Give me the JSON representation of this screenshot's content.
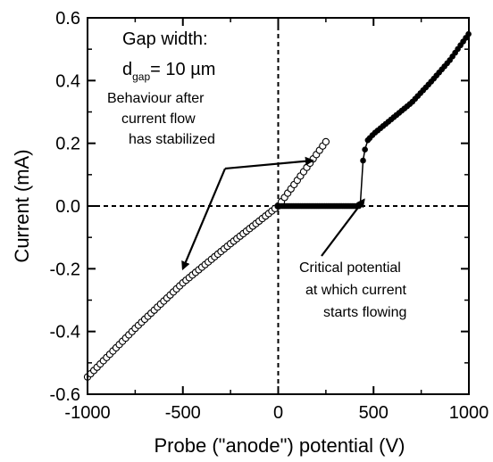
{
  "chart_data": {
    "type": "scatter",
    "xlabel": "Probe (\"anode\") potential (V)",
    "ylabel": "Current (mA)",
    "xlim": [
      -1000,
      1000
    ],
    "ylim": [
      -0.6,
      0.6
    ],
    "xticks": [
      -1000,
      -500,
      0,
      500,
      1000
    ],
    "xtick_labels": [
      "-1000",
      "-500",
      "0",
      "500",
      "1000"
    ],
    "yticks": [
      -0.6,
      -0.4,
      -0.2,
      0.0,
      0.2,
      0.4,
      0.6
    ],
    "ytick_labels": [
      "-0.6",
      "-0.4",
      "-0.2",
      "0.0",
      "0.2",
      "0.4",
      "0.6"
    ],
    "grid": false,
    "reference_lines": [
      {
        "orientation": "vertical",
        "x": 0,
        "style": "dashed"
      },
      {
        "orientation": "horizontal",
        "y": 0,
        "style": "dashed"
      }
    ],
    "series": [
      {
        "marker": "open-circle",
        "color": "#000000",
        "x_range": [
          -1000,
          250
        ],
        "points": [
          [
            -1000,
            -0.545
          ],
          [
            -750,
            -0.39
          ],
          [
            -500,
            -0.245
          ],
          [
            -250,
            -0.12
          ],
          [
            0,
            0.0
          ],
          [
            250,
            0.205
          ]
        ]
      },
      {
        "marker": "filled-circle",
        "color": "#000000",
        "points": [
          [
            0,
            0.0
          ],
          [
            100,
            0.0
          ],
          [
            200,
            0.0
          ],
          [
            300,
            0.0
          ],
          [
            400,
            0.0
          ],
          [
            430,
            0.0
          ],
          [
            445,
            0.145
          ],
          [
            455,
            0.18
          ],
          [
            470,
            0.21
          ],
          [
            500,
            0.23
          ],
          [
            600,
            0.28
          ],
          [
            700,
            0.33
          ],
          [
            800,
            0.395
          ],
          [
            900,
            0.465
          ],
          [
            1000,
            0.55
          ]
        ]
      }
    ],
    "inset_text": {
      "line1": "Gap width:",
      "d_symbol": "d",
      "d_subscript": "gap",
      "d_value": "= 10 µm"
    },
    "annotations": [
      {
        "lines": [
          "Behaviour after",
          "current flow",
          "has stabilized"
        ],
        "arrows_to": [
          [
            -500,
            -0.2
          ],
          [
            180,
            0.145
          ]
        ]
      },
      {
        "lines": [
          "Critical potential",
          "at which current",
          "starts flowing"
        ],
        "arrows_to": [
          [
            450,
            0.02
          ]
        ]
      }
    ]
  }
}
